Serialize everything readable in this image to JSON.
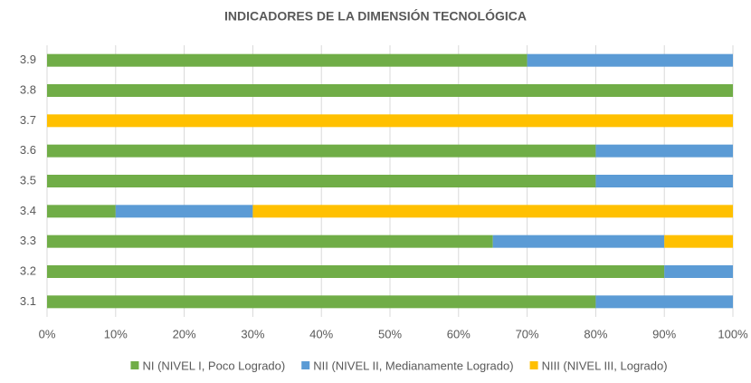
{
  "chart_data": {
    "type": "stacked_barh",
    "title": "INDICADORES DE LA DIMENSIÓN  TECNOLÓGICA",
    "categories": [
      "3.1",
      "3.2",
      "3.3",
      "3.4",
      "3.5",
      "3.6",
      "3.7",
      "3.8",
      "3.9"
    ],
    "series": [
      {
        "name": "NI (NIVEL I, Poco Logrado)",
        "color": "#70ad47",
        "values": [
          80,
          90,
          65,
          10,
          80,
          80,
          0,
          100,
          70
        ]
      },
      {
        "name": "NII (NIVEL II, Medianamente Logrado)",
        "color": "#5b9bd5",
        "values": [
          20,
          10,
          25,
          20,
          20,
          20,
          0,
          0,
          30
        ]
      },
      {
        "name": "NIII (NIVEL III, Logrado)",
        "color": "#ffc000",
        "values": [
          0,
          0,
          10,
          70,
          0,
          0,
          100,
          0,
          0
        ]
      }
    ],
    "xlim": [
      0,
      100
    ],
    "xticks": [
      {
        "value": 0,
        "label": "0%"
      },
      {
        "value": 10,
        "label": "10%"
      },
      {
        "value": 20,
        "label": "20%"
      },
      {
        "value": 30,
        "label": "30%"
      },
      {
        "value": 40,
        "label": "40%"
      },
      {
        "value": 50,
        "label": "50%"
      },
      {
        "value": 60,
        "label": "60%"
      },
      {
        "value": 70,
        "label": "70%"
      },
      {
        "value": 80,
        "label": "80%"
      },
      {
        "value": 90,
        "label": "90%"
      },
      {
        "value": 100,
        "label": "100%"
      }
    ],
    "grid": true,
    "legend": "bottom"
  }
}
